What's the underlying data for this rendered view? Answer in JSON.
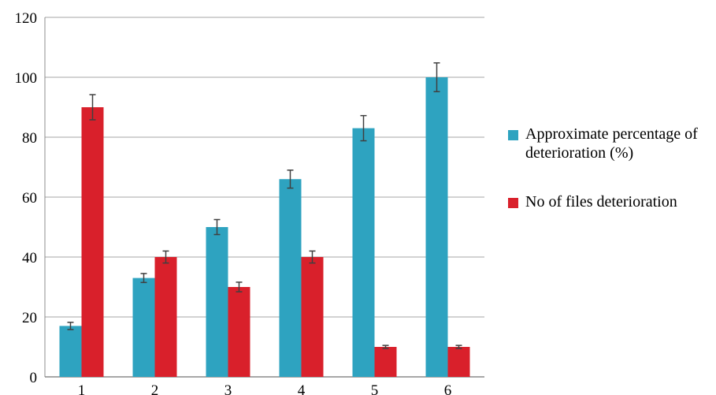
{
  "chart_data": {
    "type": "bar",
    "categories": [
      "1",
      "2",
      "3",
      "4",
      "5",
      "6"
    ],
    "series": [
      {
        "name": "Approximate percentage of deterioration (%)",
        "color": "#2ea3c0",
        "values": [
          17,
          33,
          50,
          66,
          83,
          100
        ],
        "errors": [
          1.2,
          1.5,
          2.5,
          3.0,
          4.2,
          4.8
        ]
      },
      {
        "name": "No of files deterioration",
        "color": "#d9202b",
        "values": [
          90,
          40,
          30,
          40,
          10,
          10
        ],
        "errors": [
          4.2,
          2.0,
          1.6,
          2.0,
          0.5,
          0.5
        ]
      }
    ],
    "y_ticks": [
      "0",
      "20",
      "40",
      "60",
      "80",
      "100",
      "120"
    ],
    "ylim": [
      0,
      120
    ],
    "grid": true,
    "legend_position": "right",
    "title": "",
    "xlabel": "",
    "ylabel": ""
  }
}
